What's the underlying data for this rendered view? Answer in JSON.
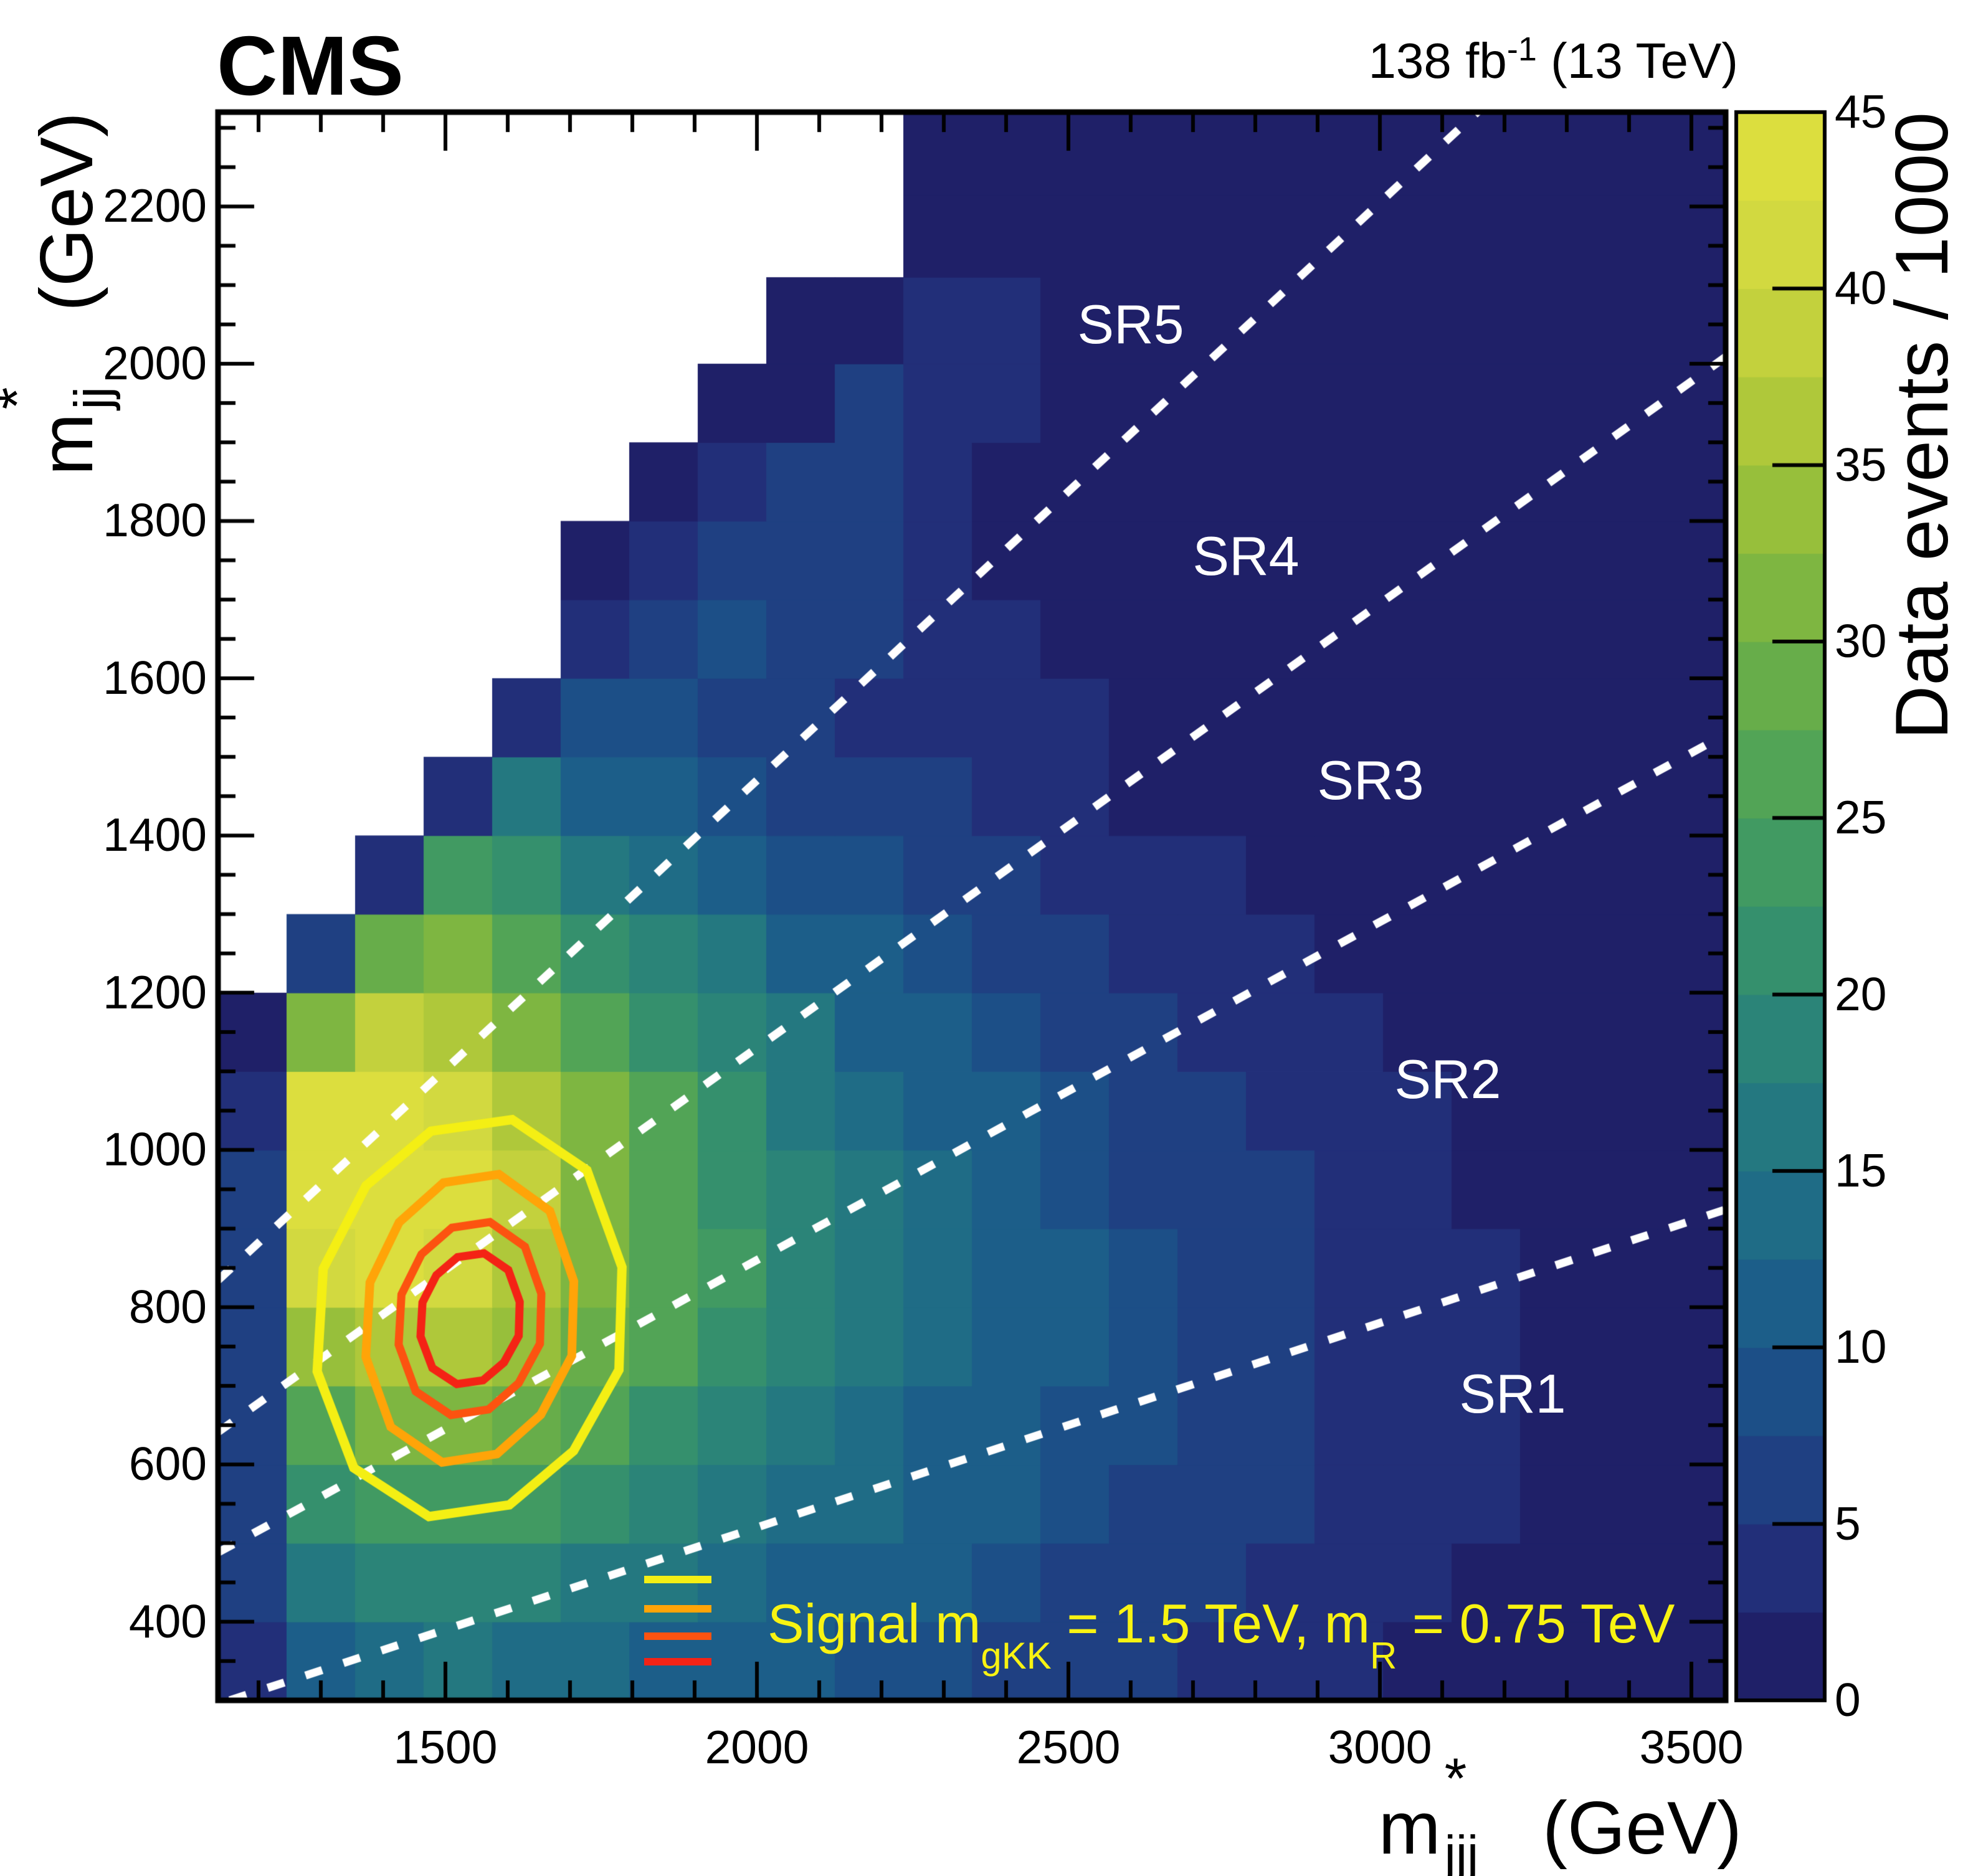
{
  "header": {
    "experiment": "CMS",
    "lumi_pre": "138 fb",
    "lumi_sup": "-1",
    "lumi_post": " (13 TeV)"
  },
  "axes": {
    "x": {
      "title_base": "m",
      "title_sub": "jjj",
      "title_sup": "*",
      "title_unit": " (GeV)",
      "range": [
        1135,
        3555
      ],
      "major_ticks": [
        1500,
        2000,
        2500,
        3000,
        3500
      ],
      "minor_step": 100
    },
    "y": {
      "title_base": "m",
      "title_sub": "jj",
      "title_sup": "*",
      "title_unit": " (GeV)",
      "range": [
        300,
        2320
      ],
      "major_ticks": [
        400,
        600,
        800,
        1000,
        1200,
        1400,
        1600,
        1800,
        2000,
        2200
      ],
      "minor_step": 50
    },
    "z": {
      "title": "Data events / 1000",
      "range": [
        0,
        45
      ],
      "major_ticks": [
        0,
        5,
        10,
        15,
        20,
        25,
        30,
        35,
        40,
        45
      ],
      "band_size": 2.5
    }
  },
  "signal_regions": [
    {
      "label": "SR1",
      "x_gev": 3213,
      "y_gev": 690
    },
    {
      "label": "SR2",
      "x_gev": 3109,
      "y_gev": 1090
    },
    {
      "label": "SR3",
      "x_gev": 2985,
      "y_gev": 1470
    },
    {
      "label": "SR4",
      "x_gev": 2785,
      "y_gev": 1755
    },
    {
      "label": "SR5",
      "x_gev": 2600,
      "y_gev": 2050
    }
  ],
  "legend": {
    "text_pre": "Signal m",
    "text_sub1": "gKK",
    "text_mid": " = 1.5 TeV, m",
    "text_sub2": "R",
    "text_post": " = 0.75 TeV",
    "text_color": "#f8f312",
    "marker_colors": [
      "#f4ef14",
      "#ffa408",
      "#fc5310",
      "#f42315"
    ]
  },
  "chart_data": {
    "type": "heatmap",
    "xlabel": "m_jjj* (GeV)",
    "ylabel": "m_jj* (GeV)",
    "zlabel": "Data events / 1000",
    "x_range": [
      1135,
      3555
    ],
    "y_range": [
      300,
      2320
    ],
    "z_range": [
      0,
      45
    ],
    "x_edges": [
      1135,
      1245,
      1355,
      1465,
      1575,
      1685,
      1795,
      1905,
      2015,
      2125,
      2235,
      2345,
      2455,
      2565,
      2675,
      2785,
      2895,
      3005,
      3115,
      3225,
      3335,
      3445,
      3555
    ],
    "y_edges": [
      300,
      400,
      500,
      600,
      700,
      800,
      900,
      1000,
      1100,
      1200,
      1300,
      1400,
      1500,
      1600,
      1700,
      1800,
      1900,
      2000,
      2110,
      2215,
      2320
    ],
    "values_rows_bottom_to_top": [
      [
        4,
        12,
        14,
        15,
        14,
        13,
        12,
        11,
        10,
        9,
        8,
        7,
        6,
        5,
        4,
        3,
        3,
        2,
        2,
        2,
        1,
        1
      ],
      [
        5,
        16,
        18,
        19,
        18,
        17,
        15,
        14,
        12,
        11,
        10,
        8,
        7,
        6,
        5,
        4,
        3,
        3,
        2,
        2,
        1,
        1
      ],
      [
        5,
        20,
        23,
        24,
        23,
        21,
        18,
        16,
        14,
        13,
        11,
        10,
        8,
        7,
        6,
        5,
        4,
        3,
        3,
        2,
        2,
        1
      ],
      [
        6,
        27,
        30,
        30,
        28,
        25,
        22,
        19,
        16,
        14,
        12,
        11,
        9,
        8,
        6,
        5,
        4,
        4,
        3,
        2,
        2,
        1
      ],
      [
        6,
        34,
        37,
        36,
        33,
        29,
        25,
        21,
        18,
        15,
        13,
        11,
        10,
        8,
        7,
        5,
        4,
        4,
        3,
        2,
        2,
        1
      ],
      [
        7,
        42,
        44,
        42,
        37,
        32,
        27,
        23,
        19,
        16,
        13,
        11,
        10,
        8,
        7,
        5,
        4,
        3,
        3,
        2,
        2,
        1
      ],
      [
        6,
        44,
        45,
        43,
        38,
        32,
        27,
        22,
        18,
        15,
        13,
        11,
        9,
        7,
        6,
        5,
        4,
        3,
        2,
        2,
        1,
        1
      ],
      [
        3,
        43,
        44,
        41,
        36,
        30,
        25,
        20,
        17,
        14,
        12,
        10,
        8,
        6,
        5,
        4,
        3,
        3,
        2,
        2,
        1,
        1
      ],
      [
        2,
        30,
        38,
        37,
        32,
        27,
        22,
        18,
        15,
        12,
        10,
        8,
        7,
        5,
        4,
        4,
        3,
        2,
        2,
        1,
        1,
        1
      ],
      [
        null,
        5,
        29,
        31,
        27,
        22,
        18,
        15,
        12,
        10,
        8,
        7,
        6,
        4,
        4,
        3,
        2,
        2,
        1,
        1,
        1,
        1
      ],
      [
        null,
        null,
        4,
        23,
        21,
        17,
        14,
        11,
        9,
        8,
        6,
        5,
        4,
        3,
        3,
        2,
        2,
        1,
        1,
        1,
        1,
        1
      ],
      [
        null,
        null,
        null,
        3,
        15,
        12,
        10,
        8,
        7,
        6,
        5,
        4,
        3,
        2,
        2,
        2,
        1,
        1,
        1,
        1,
        1,
        0
      ],
      [
        null,
        null,
        null,
        null,
        4,
        9,
        8,
        7,
        5,
        4,
        4,
        3,
        3,
        2,
        2,
        1,
        1,
        1,
        1,
        0,
        0,
        0
      ],
      [
        null,
        null,
        null,
        null,
        null,
        3,
        7,
        8,
        6,
        5,
        3,
        3,
        2,
        2,
        1,
        1,
        1,
        1,
        0,
        0,
        0,
        0
      ],
      [
        null,
        null,
        null,
        null,
        null,
        2,
        4,
        7,
        7,
        5,
        3,
        2,
        2,
        1,
        1,
        1,
        1,
        0,
        0,
        0,
        0,
        0
      ],
      [
        null,
        null,
        null,
        null,
        null,
        null,
        2,
        3,
        6,
        5,
        4,
        2,
        1,
        1,
        1,
        1,
        0,
        0,
        0,
        0,
        0,
        0
      ],
      [
        null,
        null,
        null,
        null,
        null,
        null,
        null,
        2,
        2,
        5,
        4,
        3,
        1,
        1,
        1,
        0,
        0,
        0,
        0,
        0,
        0,
        0
      ],
      [
        null,
        null,
        null,
        null,
        null,
        null,
        null,
        null,
        2,
        2,
        4,
        3,
        2,
        1,
        0,
        0,
        0,
        0,
        0,
        0,
        0,
        0
      ],
      [
        null,
        null,
        null,
        null,
        null,
        null,
        null,
        null,
        null,
        null,
        2,
        2,
        1,
        1,
        0,
        0,
        0,
        0,
        0,
        0,
        0,
        0
      ],
      [
        null,
        null,
        null,
        null,
        null,
        null,
        null,
        null,
        null,
        null,
        1,
        1,
        1,
        0,
        0,
        0,
        0,
        0,
        0,
        0,
        0,
        0
      ]
    ],
    "colormap_stops": [
      [
        0.0,
        "#1b1a5e"
      ],
      [
        0.056,
        "#232773"
      ],
      [
        0.111,
        "#20387f"
      ],
      [
        0.167,
        "#1d4886"
      ],
      [
        0.222,
        "#1b5789"
      ],
      [
        0.278,
        "#1d6589"
      ],
      [
        0.333,
        "#217284"
      ],
      [
        0.389,
        "#277e7d"
      ],
      [
        0.444,
        "#2f8a73"
      ],
      [
        0.5,
        "#3a9568"
      ],
      [
        0.556,
        "#49a05c"
      ],
      [
        0.611,
        "#5ca94f"
      ],
      [
        0.667,
        "#72b244"
      ],
      [
        0.722,
        "#8abb3d"
      ],
      [
        0.778,
        "#a3c339"
      ],
      [
        0.833,
        "#bacc3a"
      ],
      [
        0.889,
        "#cbd53f"
      ],
      [
        0.944,
        "#d8dc40"
      ],
      [
        1.0,
        "#e0e03c"
      ]
    ],
    "region_boundary_ratios": [
      0.26,
      0.43,
      0.565,
      0.735
    ],
    "boundary_line_color": "#ffffff",
    "signal_contours": {
      "center": {
        "x_gev": 1540,
        "y_gev": 785
      },
      "levels": [
        {
          "name": "outer",
          "color": "#f4ef14",
          "rx_gev": 252,
          "ry_gev": 255,
          "width": 15
        },
        {
          "name": "mid-outer",
          "color": "#ffa408",
          "rx_gev": 172,
          "ry_gev": 185,
          "width": 14
        },
        {
          "name": "mid-inner",
          "color": "#fc5310",
          "rx_gev": 118,
          "ry_gev": 124,
          "width": 13
        },
        {
          "name": "inner",
          "color": "#f42315",
          "rx_gev": 82,
          "ry_gev": 84,
          "width": 13
        }
      ],
      "vertex_jitter": [
        1.0,
        1.05,
        1.03,
        0.97,
        0.94,
        0.97,
        1.01,
        1.05,
        1.02,
        0.96,
        0.93,
        0.98
      ]
    }
  }
}
